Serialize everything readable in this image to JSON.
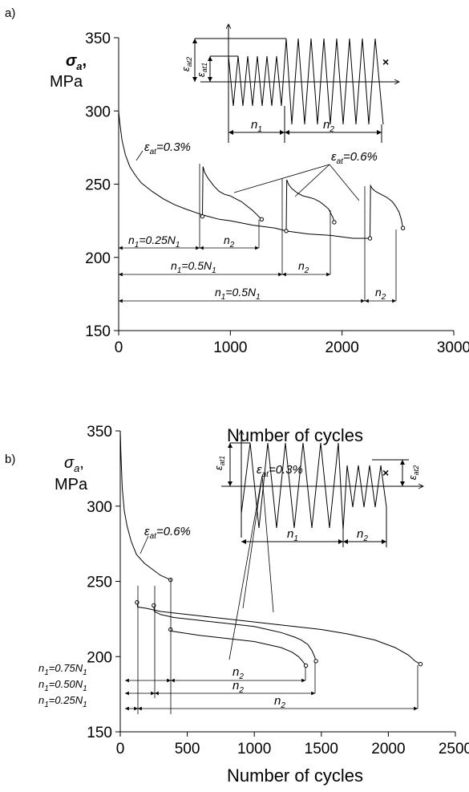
{
  "chart_data": [
    {
      "type": "line",
      "panel": "a)",
      "xlabel": "Number of cycles",
      "ylabel_symbol": "σ",
      "ylabel_subscript": "a",
      "ylabel_suffix": ",",
      "ylabel_unit": "MPa",
      "xlim": [
        0,
        3000
      ],
      "ylim": [
        150,
        350
      ],
      "xticks": [
        "0",
        "1000",
        "2000",
        "3000"
      ],
      "yticks": [
        "150",
        "200",
        "250",
        "300",
        "350"
      ],
      "series": [
        {
          "x": [
            0,
            10,
            30,
            60,
            100,
            150,
            200,
            300,
            400,
            500,
            600,
            750,
            900,
            1000,
            1200,
            1400,
            1500,
            1700,
            1900,
            2000,
            2100,
            2250
          ],
          "y": [
            300,
            292,
            280,
            270,
            262,
            256,
            251,
            245,
            240,
            236,
            233,
            229,
            226,
            225,
            222,
            220,
            218,
            216,
            215,
            214,
            213,
            213
          ]
        },
        {
          "x": [
            750,
            755,
            770,
            800,
            850,
            900,
            950,
            1000,
            1050,
            1100,
            1150,
            1200,
            1240,
            1265,
            1280
          ],
          "y": [
            228,
            262,
            258,
            254,
            249,
            245,
            243,
            242,
            240,
            238,
            235,
            232,
            229,
            227,
            226
          ]
        },
        {
          "x": [
            1500,
            1505,
            1520,
            1550,
            1600,
            1650,
            1700,
            1750,
            1800,
            1850,
            1880,
            1900,
            1920,
            1930
          ],
          "y": [
            218,
            253,
            250,
            247,
            244,
            242,
            241,
            240,
            238,
            235,
            233,
            230,
            227,
            224
          ]
        },
        {
          "x": [
            2250,
            2255,
            2270,
            2300,
            2350,
            2400,
            2450,
            2480,
            2510,
            2530,
            2545
          ],
          "y": [
            213,
            249,
            247,
            245,
            243,
            241,
            238,
            235,
            231,
            226,
            220
          ]
        }
      ],
      "inset": {
        "eps1_base": "ε",
        "eps1_sub": "at1",
        "eps2_base": "ε",
        "eps2_sub": "at2",
        "n1": "n",
        "n1_sub": "1",
        "n2": "n",
        "n2_sub": "2"
      },
      "annotations": [
        {
          "base": "ε",
          "sub": "at",
          "value": "=0.3%"
        },
        {
          "base": "ε",
          "sub": "at",
          "value": "=0.6%"
        },
        {
          "pre": "n",
          "pre_sub": "1",
          "mid": "=0.25N",
          "mid_sub": "1"
        },
        {
          "pre": "n",
          "pre_sub": "2"
        },
        {
          "pre": "n",
          "pre_sub": "1",
          "mid": "=0.5N",
          "mid_sub": "1"
        },
        {
          "pre": "n",
          "pre_sub": "2"
        },
        {
          "pre": "n",
          "pre_sub": "1",
          "mid": "=0.5N",
          "mid_sub": "1"
        },
        {
          "pre": "n",
          "pre_sub": "2"
        }
      ]
    },
    {
      "type": "line",
      "panel": "b)",
      "xlabel": "Number of cycles",
      "ylabel_symbol": "σ",
      "ylabel_subscript": "a",
      "ylabel_suffix": ",",
      "ylabel_unit": "MPa",
      "xlim": [
        0,
        2500
      ],
      "ylim": [
        150,
        350
      ],
      "xticks": [
        "0",
        "500",
        "1000",
        "1500",
        "2000",
        "2500"
      ],
      "yticks": [
        "150",
        "200",
        "250",
        "300",
        "350"
      ],
      "series": [
        {
          "x": [
            0,
            5,
            15,
            30,
            50,
            80,
            120,
            180,
            240,
            300,
            375
          ],
          "y": [
            350,
            335,
            312,
            297,
            287,
            277,
            268,
            262,
            258,
            254,
            251
          ]
        },
        {
          "x": [
            125,
            130,
            200,
            300,
            500,
            700,
            900,
            1100,
            1300,
            1500,
            1700,
            1900,
            2050,
            2150,
            2200,
            2240
          ],
          "y": [
            236,
            233,
            232,
            230,
            228,
            226,
            224,
            222,
            220,
            218,
            215,
            211,
            206,
            201,
            197,
            195
          ]
        },
        {
          "x": [
            250,
            255,
            300,
            400,
            600,
            800,
            1000,
            1100,
            1200,
            1300,
            1350,
            1400,
            1430,
            1450,
            1460
          ],
          "y": [
            234,
            230,
            228,
            226,
            224,
            222,
            220,
            218,
            216,
            213,
            211,
            208,
            204,
            200,
            197
          ]
        },
        {
          "x": [
            375,
            380,
            450,
            600,
            800,
            1000,
            1100,
            1200,
            1280,
            1330,
            1360,
            1385
          ],
          "y": [
            218,
            217,
            216,
            214,
            212,
            210,
            208,
            206,
            203,
            200,
            197,
            194
          ]
        }
      ],
      "inset": {
        "eps1_base": "ε",
        "eps1_sub": "at1",
        "eps2_base": "ε",
        "eps2_sub": "at2",
        "n1": "n",
        "n1_sub": "1",
        "n2": "n",
        "n2_sub": "2"
      },
      "annotations": [
        {
          "base": "ε",
          "sub": "at",
          "value": "=0.6%"
        },
        {
          "base": "ε",
          "sub": "at",
          "value": "=0.3%"
        },
        {
          "pre": "n",
          "pre_sub": "1",
          "mid": "=0.75N",
          "mid_sub": "1"
        },
        {
          "pre": "n",
          "pre_sub": "1",
          "mid": "=0.50N",
          "mid_sub": "1"
        },
        {
          "pre": "n",
          "pre_sub": "1",
          "mid": "=0.25N",
          "mid_sub": "1"
        },
        {
          "pre": "n",
          "pre_sub": "2"
        },
        {
          "pre": "n",
          "pre_sub": "2"
        },
        {
          "pre": "n",
          "pre_sub": "2"
        }
      ]
    }
  ]
}
